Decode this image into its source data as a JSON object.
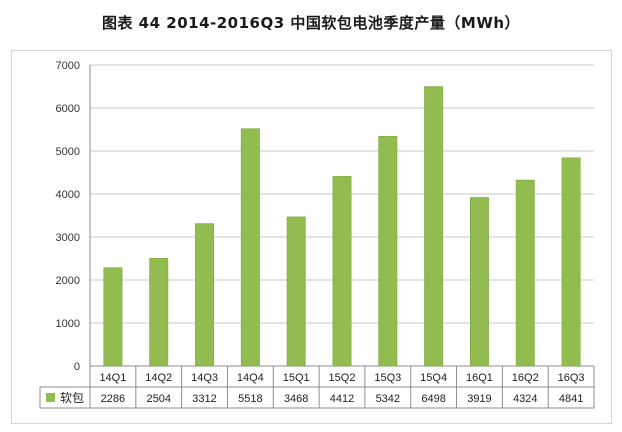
{
  "title": "图表 44 2014-2016Q3 中国软包电池季度产量（MWh）",
  "chart_data": {
    "type": "bar",
    "title": "图表 44 2014-2016Q3 中国软包电池季度产量（MWh）",
    "xlabel": "",
    "ylabel": "",
    "ylim": [
      0,
      7000
    ],
    "yticks": [
      0,
      1000,
      2000,
      3000,
      4000,
      5000,
      6000,
      7000
    ],
    "grid": true,
    "legend_position": "bottom-left (data table)",
    "categories": [
      "14Q1",
      "14Q2",
      "14Q3",
      "14Q4",
      "15Q1",
      "15Q2",
      "15Q3",
      "15Q4",
      "16Q1",
      "16Q2",
      "16Q3"
    ],
    "series": [
      {
        "name": "软包",
        "color": "#92bc4f",
        "values": [
          2286,
          2504,
          3312,
          5518,
          3468,
          4412,
          5342,
          6498,
          3919,
          4324,
          4841
        ]
      }
    ]
  }
}
